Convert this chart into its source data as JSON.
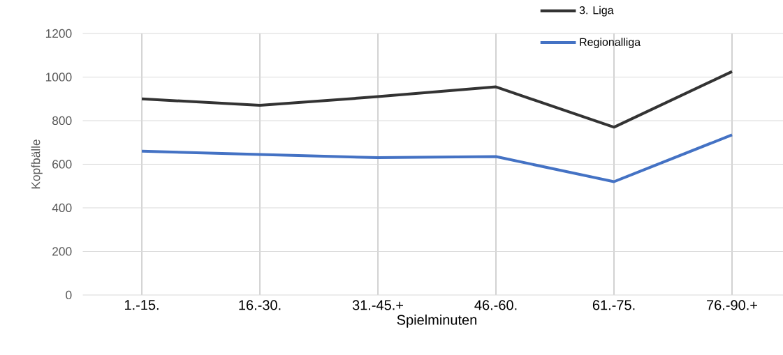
{
  "chart_data": {
    "type": "line",
    "xlabel": "Spielminuten",
    "ylabel": "Kopfbälle",
    "categories": [
      "1.-15.",
      "16.-30.",
      "31.-45.+",
      "46.-60.",
      "61.-75.",
      "76.-90.+"
    ],
    "series": [
      {
        "name": "3. Liga",
        "color": "#333333",
        "values": [
          900,
          870,
          910,
          955,
          770,
          1025
        ]
      },
      {
        "name": "Regionalliga",
        "color": "#4472c4",
        "values": [
          660,
          645,
          630,
          635,
          520,
          735
        ]
      }
    ],
    "ylim": [
      0,
      1200
    ],
    "yticks": [
      0,
      200,
      400,
      600,
      800,
      1000,
      1200
    ],
    "grid": true,
    "legend": "top right",
    "marker": "none",
    "line_style": "solid"
  }
}
